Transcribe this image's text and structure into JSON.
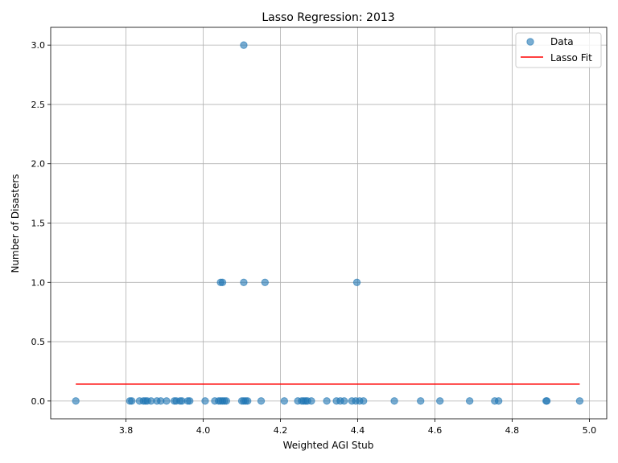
{
  "chart_data": {
    "type": "scatter",
    "title": "Lasso Regression: 2013",
    "xlabel": "Weighted AGI Stub",
    "ylabel": "Number of Disasters",
    "xlim": [
      3.605,
      5.045
    ],
    "ylim": [
      -0.15,
      3.15
    ],
    "xticks": [
      3.8,
      4.0,
      4.2,
      4.4,
      4.6,
      4.8,
      5.0
    ],
    "xtick_labels": [
      "3.8",
      "4.0",
      "4.2",
      "4.4",
      "4.6",
      "4.8",
      "5.0"
    ],
    "yticks": [
      0.0,
      0.5,
      1.0,
      1.5,
      2.0,
      2.5,
      3.0
    ],
    "ytick_labels": [
      "0.0",
      "0.5",
      "1.0",
      "1.5",
      "2.0",
      "2.5",
      "3.0"
    ],
    "grid": true,
    "legend": {
      "placement": "top-right",
      "entries": [
        "Data",
        "Lasso Fit"
      ]
    },
    "series": [
      {
        "name": "Data",
        "kind": "scatter",
        "color": "#1f77b4",
        "points": [
          [
            3.67,
            0
          ],
          [
            3.81,
            0
          ],
          [
            3.815,
            0
          ],
          [
            3.835,
            0
          ],
          [
            3.845,
            0
          ],
          [
            3.85,
            0
          ],
          [
            3.855,
            0
          ],
          [
            3.865,
            0
          ],
          [
            3.88,
            0
          ],
          [
            3.89,
            0
          ],
          [
            3.905,
            0
          ],
          [
            3.925,
            0
          ],
          [
            3.93,
            0
          ],
          [
            3.94,
            0
          ],
          [
            3.945,
            0
          ],
          [
            3.96,
            0
          ],
          [
            3.965,
            0
          ],
          [
            4.005,
            0
          ],
          [
            4.03,
            0
          ],
          [
            4.04,
            0
          ],
          [
            4.045,
            0
          ],
          [
            4.05,
            0
          ],
          [
            4.055,
            0
          ],
          [
            4.06,
            0
          ],
          [
            4.1,
            0
          ],
          [
            4.105,
            0
          ],
          [
            4.11,
            0
          ],
          [
            4.115,
            0
          ],
          [
            4.15,
            0
          ],
          [
            4.21,
            0
          ],
          [
            4.245,
            0
          ],
          [
            4.255,
            0
          ],
          [
            4.26,
            0
          ],
          [
            4.265,
            0
          ],
          [
            4.27,
            0
          ],
          [
            4.28,
            0
          ],
          [
            4.32,
            0
          ],
          [
            4.345,
            0
          ],
          [
            4.355,
            0
          ],
          [
            4.365,
            0
          ],
          [
            4.385,
            0
          ],
          [
            4.395,
            0
          ],
          [
            4.405,
            0
          ],
          [
            4.415,
            0
          ],
          [
            4.495,
            0
          ],
          [
            4.563,
            0
          ],
          [
            4.613,
            0
          ],
          [
            4.69,
            0
          ],
          [
            4.755,
            0
          ],
          [
            4.765,
            0
          ],
          [
            4.888,
            0
          ],
          [
            4.89,
            0
          ],
          [
            4.975,
            0
          ],
          [
            4.045,
            1
          ],
          [
            4.05,
            1
          ],
          [
            4.105,
            1
          ],
          [
            4.16,
            1
          ],
          [
            4.398,
            1
          ],
          [
            4.105,
            3
          ]
        ]
      },
      {
        "name": "Lasso Fit",
        "kind": "line",
        "color": "#ff0000",
        "x": [
          3.67,
          4.975
        ],
        "y": [
          0.142,
          0.142
        ]
      }
    ]
  }
}
